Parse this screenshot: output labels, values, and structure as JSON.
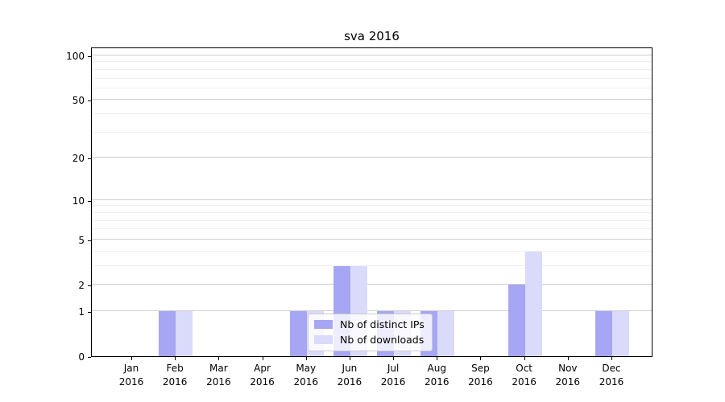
{
  "chart_data": {
    "type": "bar",
    "title": "sva 2016",
    "year_label": "2016",
    "categories": [
      "Jan",
      "Feb",
      "Mar",
      "Apr",
      "May",
      "Jun",
      "Jul",
      "Aug",
      "Sep",
      "Oct",
      "Nov",
      "Dec"
    ],
    "series": [
      {
        "name": "Nb of distinct IPs",
        "color": "#a6a6f4",
        "values": [
          0,
          1,
          0,
          0,
          1,
          3,
          1,
          1,
          0,
          2,
          0,
          1
        ]
      },
      {
        "name": "Nb of downloads",
        "color": "#dadafa",
        "values": [
          0,
          1,
          0,
          0,
          1,
          3,
          1,
          1,
          0,
          4,
          0,
          1
        ]
      }
    ],
    "y_scale": "log1p",
    "y_axis_ticks": [
      0,
      1,
      2,
      5,
      10,
      20,
      50,
      100
    ],
    "y_axis_minor_ticks": [
      3,
      4,
      6,
      7,
      8,
      9,
      30,
      40,
      60,
      70,
      80,
      90
    ],
    "y_max": 114.7,
    "ylim_bottom": 0,
    "grid": true,
    "legend_position": "lower center",
    "colors": {
      "major_grid": "#cfcfcf",
      "minor_grid": "#f0f0f0",
      "spine": "#000000",
      "text": "#000000",
      "legend_border": "#cccccc",
      "background": "#ffffff"
    }
  }
}
